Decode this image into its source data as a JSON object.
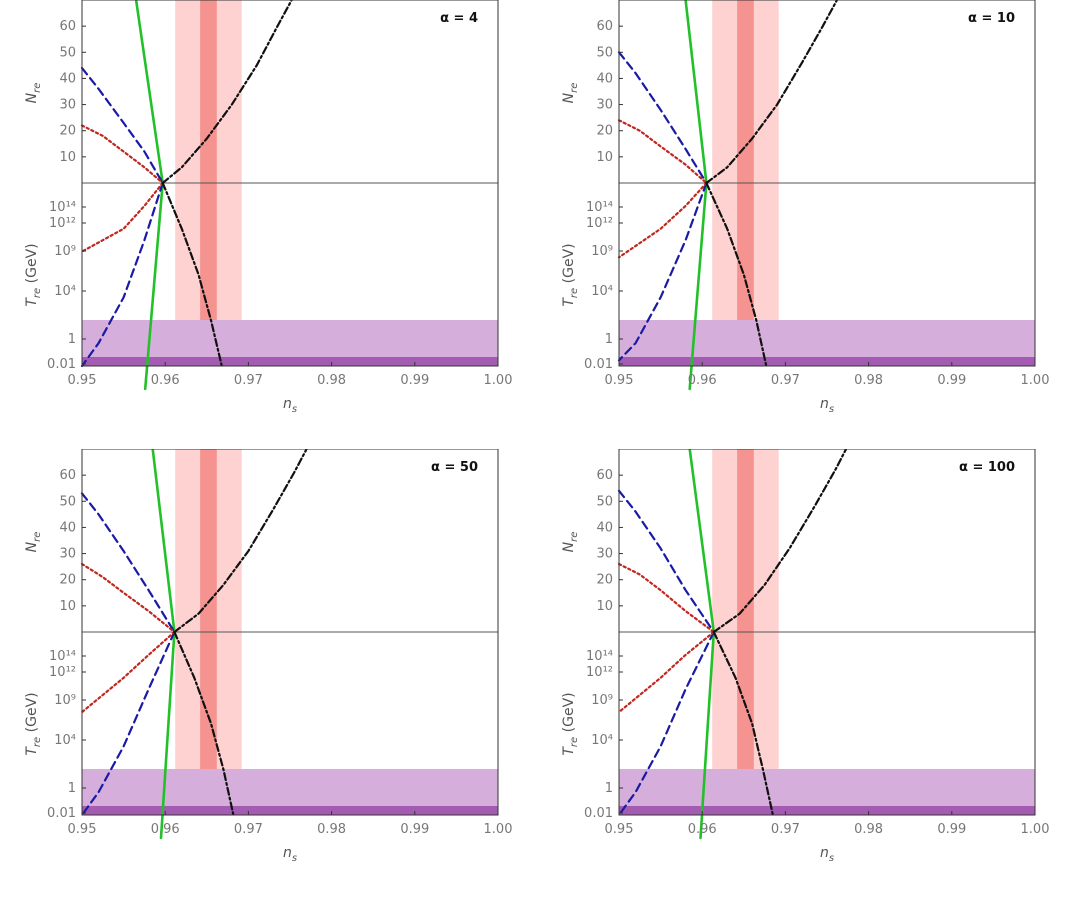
{
  "colors": {
    "outer_band": "#ffd2d2",
    "inner_band": "#f4938f",
    "bbn_band": "#d5aedb",
    "bbn_dark": "#a45cb2",
    "green": "#22c12a",
    "blue": "#1a1aa6",
    "red": "#c0271f",
    "black": "#111111",
    "divider": "#555555"
  },
  "chart_data": [
    {
      "type": "line",
      "alpha_label": "α = 4",
      "xlabel": "n_s",
      "ylabel_top": "N_re",
      "ylabel_bottom": "T_re (GeV)",
      "xlim": [
        0.95,
        1.0
      ],
      "x_ticks": [
        "0.95",
        "0.96",
        "0.97",
        "0.98",
        "0.99",
        "1.00"
      ],
      "top": {
        "ylim": [
          0,
          70
        ],
        "y_ticks": [
          "10",
          "20",
          "30",
          "40",
          "50",
          "60"
        ]
      },
      "bottom": {
        "y_ticks": [
          "0.01",
          "1",
          "10⁴",
          "10⁹",
          "10¹²",
          "10¹⁴"
        ]
      },
      "bands": {
        "outer": [
          0.9612,
          0.9692
        ],
        "inner": [
          0.9642,
          0.9662
        ]
      },
      "convergence_ns": 0.9597,
      "series": [
        {
          "key": "green",
          "style": "solid",
          "top": [
            [
              0.9565,
              70
            ],
            [
              0.9597,
              0
            ]
          ],
          "bottom": [
            [
              0.9597,
              16
            ],
            [
              0.9576,
              -2
            ]
          ]
        },
        {
          "key": "blue",
          "style": "dashed",
          "top": [
            [
              0.95,
              44
            ],
            [
              0.952,
              36
            ],
            [
              0.955,
              23
            ],
            [
              0.9575,
              12
            ],
            [
              0.9597,
              0
            ]
          ],
          "bottom": [
            [
              0.9597,
              16
            ],
            [
              0.9575,
              11
            ],
            [
              0.955,
              6
            ],
            [
              0.952,
              2
            ],
            [
              0.95,
              0
            ]
          ]
        },
        {
          "key": "red",
          "style": "dotted",
          "top": [
            [
              0.95,
              22
            ],
            [
              0.9525,
              18
            ],
            [
              0.955,
              12
            ],
            [
              0.9575,
              6
            ],
            [
              0.9597,
              0
            ]
          ],
          "bottom": [
            [
              0.9597,
              16
            ],
            [
              0.9575,
              14
            ],
            [
              0.955,
              12
            ],
            [
              0.95,
              10
            ]
          ]
        },
        {
          "key": "black",
          "style": "dashdot",
          "top": [
            [
              0.9597,
              0
            ],
            [
              0.962,
              6
            ],
            [
              0.965,
              17
            ],
            [
              0.968,
              30
            ],
            [
              0.971,
              45
            ],
            [
              0.9735,
              60
            ],
            [
              0.9752,
              70
            ]
          ],
          "bottom": [
            [
              0.9597,
              16
            ],
            [
              0.962,
              12
            ],
            [
              0.964,
              8
            ],
            [
              0.9655,
              4
            ],
            [
              0.9668,
              0
            ]
          ]
        }
      ]
    },
    {
      "type": "line",
      "alpha_label": "α = 10",
      "xlabel": "n_s",
      "ylabel_top": "N_re",
      "ylabel_bottom": "T_re (GeV)",
      "xlim": [
        0.95,
        1.0
      ],
      "x_ticks": [
        "0.95",
        "0.96",
        "0.97",
        "0.98",
        "0.99",
        "1.00"
      ],
      "top": {
        "ylim": [
          0,
          70
        ],
        "y_ticks": [
          "10",
          "20",
          "30",
          "40",
          "50",
          "60"
        ]
      },
      "bottom": {
        "y_ticks": [
          "0.01",
          "1",
          "10⁴",
          "10⁹",
          "10¹²",
          "10¹⁴"
        ]
      },
      "bands": {
        "outer": [
          0.9612,
          0.9692
        ],
        "inner": [
          0.9642,
          0.9662
        ]
      },
      "convergence_ns": 0.9605,
      "series": [
        {
          "key": "green",
          "style": "solid",
          "top": [
            [
              0.958,
              70
            ],
            [
              0.9605,
              0
            ]
          ],
          "bottom": [
            [
              0.9605,
              16
            ],
            [
              0.9585,
              -2
            ]
          ]
        },
        {
          "key": "blue",
          "style": "dashed",
          "top": [
            [
              0.95,
              50
            ],
            [
              0.952,
              42
            ],
            [
              0.955,
              28
            ],
            [
              0.958,
              13
            ],
            [
              0.9605,
              0
            ]
          ],
          "bottom": [
            [
              0.9605,
              16
            ],
            [
              0.958,
              11
            ],
            [
              0.955,
              6
            ],
            [
              0.952,
              2
            ],
            [
              0.95,
              0.5
            ]
          ]
        },
        {
          "key": "red",
          "style": "dotted",
          "top": [
            [
              0.95,
              24
            ],
            [
              0.9525,
              20
            ],
            [
              0.955,
              14
            ],
            [
              0.958,
              7
            ],
            [
              0.9605,
              0
            ]
          ],
          "bottom": [
            [
              0.9605,
              16
            ],
            [
              0.958,
              14
            ],
            [
              0.955,
              12
            ],
            [
              0.95,
              9.5
            ]
          ]
        },
        {
          "key": "black",
          "style": "dashdot",
          "top": [
            [
              0.9605,
              0
            ],
            [
              0.963,
              6
            ],
            [
              0.966,
              17
            ],
            [
              0.969,
              30
            ],
            [
              0.972,
              46
            ],
            [
              0.9745,
              60
            ],
            [
              0.9762,
              70
            ]
          ],
          "bottom": [
            [
              0.9605,
              16
            ],
            [
              0.963,
              12
            ],
            [
              0.965,
              8
            ],
            [
              0.9665,
              4
            ],
            [
              0.9677,
              0
            ]
          ]
        }
      ]
    },
    {
      "type": "line",
      "alpha_label": "α = 50",
      "xlabel": "n_s",
      "ylabel_top": "N_re",
      "ylabel_bottom": "T_re (GeV)",
      "xlim": [
        0.95,
        1.0
      ],
      "x_ticks": [
        "0.95",
        "0.96",
        "0.97",
        "0.98",
        "0.99",
        "1.00"
      ],
      "top": {
        "ylim": [
          0,
          70
        ],
        "y_ticks": [
          "10",
          "20",
          "30",
          "40",
          "50",
          "60"
        ]
      },
      "bottom": {
        "y_ticks": [
          "0.01",
          "1",
          "10⁴",
          "10⁹",
          "10¹²",
          "10¹⁴"
        ]
      },
      "bands": {
        "outer": [
          0.9612,
          0.9692
        ],
        "inner": [
          0.9642,
          0.9662
        ]
      },
      "convergence_ns": 0.9611,
      "series": [
        {
          "key": "green",
          "style": "solid",
          "top": [
            [
              0.9585,
              70
            ],
            [
              0.9611,
              0
            ]
          ],
          "bottom": [
            [
              0.9611,
              16
            ],
            [
              0.9595,
              -2
            ]
          ]
        },
        {
          "key": "blue",
          "style": "dashed",
          "top": [
            [
              0.95,
              53
            ],
            [
              0.952,
              45
            ],
            [
              0.955,
              31
            ],
            [
              0.958,
              16
            ],
            [
              0.9611,
              0
            ]
          ],
          "bottom": [
            [
              0.9611,
              16
            ],
            [
              0.958,
              11
            ],
            [
              0.955,
              6
            ],
            [
              0.952,
              2
            ],
            [
              0.95,
              0
            ]
          ]
        },
        {
          "key": "red",
          "style": "dotted",
          "top": [
            [
              0.95,
              26
            ],
            [
              0.9525,
              21
            ],
            [
              0.955,
              15
            ],
            [
              0.958,
              8
            ],
            [
              0.9611,
              0
            ]
          ],
          "bottom": [
            [
              0.9611,
              16
            ],
            [
              0.958,
              14
            ],
            [
              0.955,
              12
            ],
            [
              0.95,
              9
            ]
          ]
        },
        {
          "key": "black",
          "style": "dashdot",
          "top": [
            [
              0.9611,
              0
            ],
            [
              0.964,
              7
            ],
            [
              0.967,
              18
            ],
            [
              0.97,
              31
            ],
            [
              0.973,
              47
            ],
            [
              0.9755,
              61
            ],
            [
              0.977,
              70
            ]
          ],
          "bottom": [
            [
              0.9611,
              16
            ],
            [
              0.9635,
              12
            ],
            [
              0.9655,
              8
            ],
            [
              0.967,
              4
            ],
            [
              0.9682,
              0
            ]
          ]
        }
      ]
    },
    {
      "type": "line",
      "alpha_label": "α = 100",
      "xlabel": "n_s",
      "ylabel_top": "N_re",
      "ylabel_bottom": "T_re (GeV)",
      "xlim": [
        0.95,
        1.0
      ],
      "x_ticks": [
        "0.95",
        "0.96",
        "0.97",
        "0.98",
        "0.99",
        "1.00"
      ],
      "top": {
        "ylim": [
          0,
          70
        ],
        "y_ticks": [
          "10",
          "20",
          "30",
          "40",
          "50",
          "60"
        ]
      },
      "bottom": {
        "y_ticks": [
          "0.01",
          "1",
          "10⁴",
          "10⁹",
          "10¹²",
          "10¹⁴"
        ]
      },
      "bands": {
        "outer": [
          0.9612,
          0.9692
        ],
        "inner": [
          0.9642,
          0.9662
        ]
      },
      "convergence_ns": 0.9614,
      "series": [
        {
          "key": "green",
          "style": "solid",
          "top": [
            [
              0.9585,
              70
            ],
            [
              0.9614,
              0
            ]
          ],
          "bottom": [
            [
              0.9614,
              16
            ],
            [
              0.9598,
              -2
            ]
          ]
        },
        {
          "key": "blue",
          "style": "dashed",
          "top": [
            [
              0.95,
              54
            ],
            [
              0.952,
              46
            ],
            [
              0.955,
              32
            ],
            [
              0.958,
              16
            ],
            [
              0.9614,
              0
            ]
          ],
          "bottom": [
            [
              0.9614,
              16
            ],
            [
              0.958,
              11
            ],
            [
              0.955,
              6
            ],
            [
              0.952,
              2
            ],
            [
              0.95,
              0
            ]
          ]
        },
        {
          "key": "red",
          "style": "dotted",
          "top": [
            [
              0.95,
              26
            ],
            [
              0.9525,
              22
            ],
            [
              0.955,
              16
            ],
            [
              0.958,
              8
            ],
            [
              0.9614,
              0
            ]
          ],
          "bottom": [
            [
              0.9614,
              16
            ],
            [
              0.958,
              14
            ],
            [
              0.955,
              12
            ],
            [
              0.95,
              9
            ]
          ]
        },
        {
          "key": "black",
          "style": "dashdot",
          "top": [
            [
              0.9614,
              0
            ],
            [
              0.9645,
              7
            ],
            [
              0.9675,
              18
            ],
            [
              0.9705,
              32
            ],
            [
              0.9735,
              48
            ],
            [
              0.976,
              62
            ],
            [
              0.9773,
              70
            ]
          ],
          "bottom": [
            [
              0.9614,
              16
            ],
            [
              0.964,
              12
            ],
            [
              0.966,
              8
            ],
            [
              0.9673,
              4
            ],
            [
              0.9685,
              0
            ]
          ]
        }
      ]
    }
  ]
}
